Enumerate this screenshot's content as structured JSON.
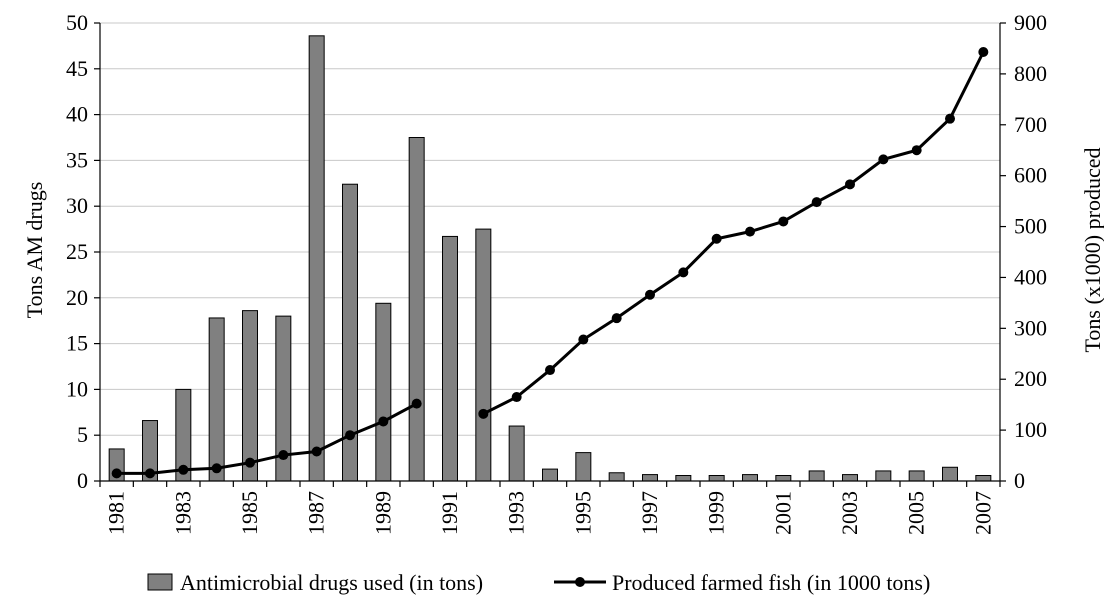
{
  "chart_data": {
    "type": "bar+line",
    "categories": [
      "1981",
      "1982",
      "1983",
      "1984",
      "1985",
      "1986",
      "1987",
      "1988",
      "1989",
      "1990",
      "1991",
      "1992",
      "1993",
      "1994",
      "1995",
      "1996",
      "1997",
      "1998",
      "1999",
      "2000",
      "2001",
      "2002",
      "2003",
      "2004",
      "2005",
      "2006",
      "2007"
    ],
    "x_tick_labels": [
      "1981",
      "1983",
      "1985",
      "1987",
      "1989",
      "1991",
      "1993",
      "1995",
      "1997",
      "1999",
      "2001",
      "2003",
      "2005",
      "2007"
    ],
    "ylabel_left": "Tons AM drugs",
    "ylabel_right": "Tons (x1000) produced",
    "ylim_left": [
      0,
      50
    ],
    "yticks_left": [
      0,
      5,
      10,
      15,
      20,
      25,
      30,
      35,
      40,
      45,
      50
    ],
    "ylim_right": [
      0,
      900
    ],
    "yticks_right": [
      0,
      100,
      200,
      300,
      400,
      500,
      600,
      700,
      800,
      900
    ],
    "grid": "horizontal",
    "legend_position": "bottom",
    "series": [
      {
        "name": "Antimicrobial drugs used (in tons)",
        "type": "bar",
        "axis": "left",
        "values": [
          3.5,
          6.6,
          10.0,
          17.8,
          18.6,
          18.0,
          48.6,
          32.4,
          19.4,
          37.5,
          26.7,
          27.5,
          6.0,
          1.3,
          3.1,
          0.9,
          0.7,
          0.6,
          0.6,
          0.7,
          0.6,
          1.1,
          0.7,
          1.1,
          1.1,
          1.5,
          0.6
        ]
      },
      {
        "name": "Produced farmed fish (in 1000 tons)",
        "type": "line",
        "axis": "right",
        "values": [
          15,
          15,
          22,
          25,
          36,
          51,
          58,
          90,
          117,
          152,
          null,
          132,
          165,
          218,
          278,
          320,
          366,
          410,
          476,
          490,
          510,
          548,
          583,
          632,
          650,
          712,
          843
        ]
      }
    ]
  }
}
